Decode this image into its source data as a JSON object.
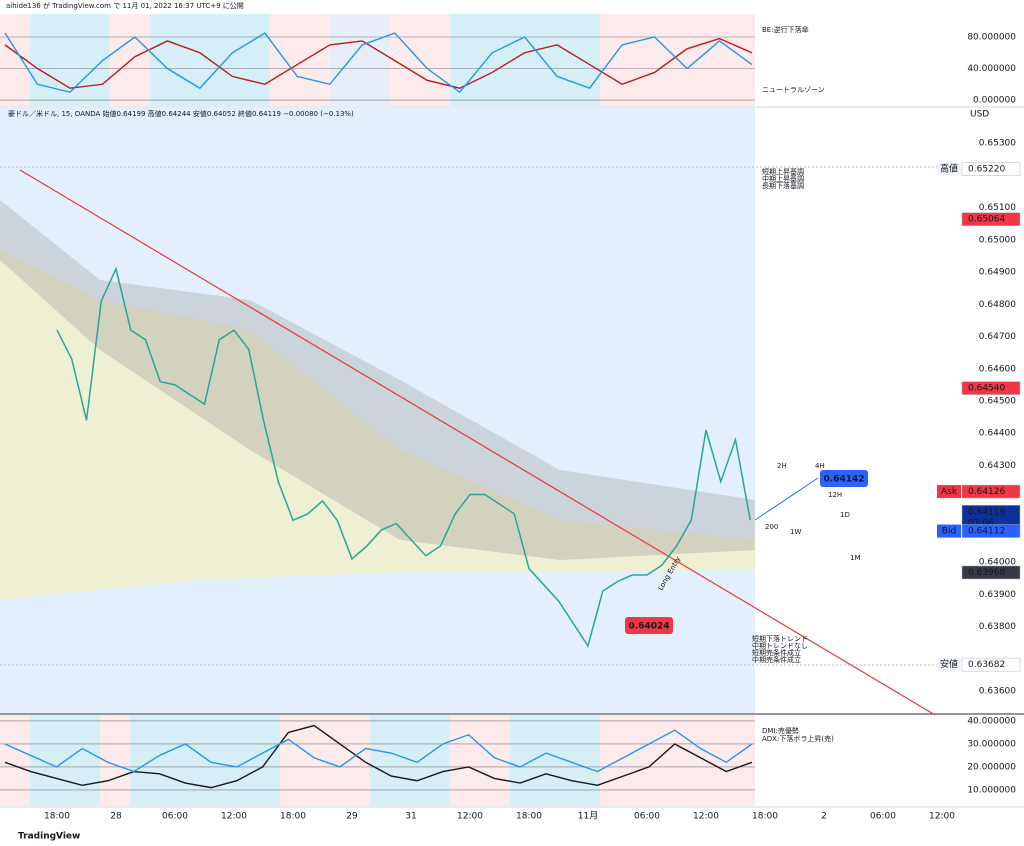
{
  "header": {
    "author_line": "aihide136 が TradingView.com で 11月 01, 2022 16:37 UTC+9 に公開",
    "symbol_line": "豪ドル／米ドル, 15, OANDA  始値0.64199  高値0.64244  安値0.64052  終値0.64119  −0.00080 (−0.13%)",
    "currency": "USD"
  },
  "chart_data": [
    {
      "type": "line",
      "yticks": [
        {
          "value": 80,
          "label": "80.000000"
        },
        {
          "value": 40,
          "label": "40.000000"
        },
        {
          "value": 0,
          "label": "0.000000"
        }
      ],
      "ylim": [
        -7.6,
        109.2
      ],
      "grid": true,
      "notes": [
        "BE:逆行下落傘",
        "ニュートラルゾーン"
      ],
      "series": [
        {
          "color": "#b71c1c",
          "values": [
            70,
            40,
            15,
            20,
            55,
            75,
            60,
            30,
            20,
            45,
            70,
            75,
            50,
            25,
            15,
            35,
            60,
            70,
            45,
            20,
            35,
            65,
            78,
            60
          ]
        },
        {
          "color": "#2196f3",
          "values": [
            85,
            20,
            10,
            50,
            80,
            40,
            15,
            60,
            85,
            30,
            20,
            70,
            85,
            40,
            10,
            60,
            80,
            30,
            15,
            70,
            80,
            40,
            75,
            45
          ]
        }
      ]
    },
    {
      "type": "line",
      "categories": [
        "18:00",
        null,
        null,
        null,
        "28",
        null,
        null,
        null,
        "06:00",
        null,
        null,
        null,
        "12:00",
        null,
        null,
        null,
        "18:00",
        null,
        null,
        null,
        "29",
        null,
        null,
        null,
        "31",
        null,
        null,
        null,
        "12:00",
        null,
        null,
        null,
        "18:00",
        null,
        null,
        null,
        "11月",
        null,
        null,
        null,
        "06:00",
        null,
        null,
        null,
        "12:00",
        null,
        null,
        null,
        "18:00",
        null,
        null,
        null,
        "2",
        null,
        null,
        null,
        "06:00",
        null,
        null,
        null,
        "12:00",
        null,
        null,
        null
      ],
      "values": [
        0.6472,
        0.6463,
        0.6444,
        0.6481,
        0.6491,
        0.6472,
        0.6469,
        0.6456,
        0.6455,
        0.6452,
        0.6449,
        0.6469,
        0.6472,
        0.6466,
        0.6444,
        0.6425,
        0.6413,
        0.6415,
        0.6419,
        0.6413,
        0.6401,
        0.6405,
        0.641,
        0.6412,
        0.6407,
        0.6402,
        0.6405,
        0.6415,
        0.6421,
        0.6421,
        0.6418,
        0.6415,
        0.6398,
        0.6393,
        0.6388,
        0.6381,
        0.6374,
        0.6391,
        0.6394,
        0.6396,
        0.6396,
        0.6399,
        0.6405,
        0.6413,
        0.6441,
        0.6425,
        0.6438,
        0.6413,
        null,
        null,
        null,
        null,
        null,
        null,
        null,
        null,
        null,
        null,
        null,
        null,
        null,
        null,
        null,
        null
      ],
      "color": "#26a69a",
      "ylim": [
        0.63532,
        0.65409
      ],
      "yticks": [
        {
          "value": 0.653,
          "label": "0.65300"
        },
        {
          "value": 0.651,
          "label": "0.65100"
        },
        {
          "value": 0.65,
          "label": "0.65000"
        },
        {
          "value": 0.649,
          "label": "0.64900"
        },
        {
          "value": 0.648,
          "label": "0.64800"
        },
        {
          "value": 0.647,
          "label": "0.64700"
        },
        {
          "value": 0.646,
          "label": "0.64600"
        },
        {
          "value": 0.645,
          "label": "0.64500"
        },
        {
          "value": 0.644,
          "label": "0.64400"
        },
        {
          "value": 0.643,
          "label": "0.64300"
        },
        {
          "value": 0.64,
          "label": "0.64000"
        },
        {
          "value": 0.639,
          "label": "0.63900"
        },
        {
          "value": 0.638,
          "label": "0.63800"
        },
        {
          "value": 0.636,
          "label": "0.63600"
        }
      ],
      "price_tags": [
        {
          "prefix": "高値",
          "value": 0.6522,
          "label": "0.65220",
          "color": "#ffffff",
          "text_color": "#131722"
        },
        {
          "value": 0.65064,
          "label": "0.65064",
          "color": "#f23645",
          "text_color": "#ffffff"
        },
        {
          "value": 0.6454,
          "label": "0.64540",
          "color": "#f23645",
          "text_color": "#ffffff"
        },
        {
          "prefix": "Ask",
          "value": 0.64126,
          "label": "0.64126",
          "color": "#f23645",
          "text_color": "#ffffff"
        },
        {
          "value": 0.64119,
          "label": "0.64119",
          "sub": "07:06",
          "color": "#0c3299",
          "text_color": "#ffffff"
        },
        {
          "prefix": "Bid",
          "value": 0.64112,
          "label": "0.64112",
          "color": "#2962ff",
          "text_color": "#ffffff"
        },
        {
          "value": 0.63968,
          "label": "0.63968",
          "color": "#363a45",
          "text_color": "#ffffff"
        },
        {
          "prefix": "安値",
          "value": 0.63682,
          "label": "0.63682",
          "color": "#ffffff",
          "text_color": "#131722"
        }
      ],
      "callouts": [
        {
          "text": "0.64142",
          "color": "#2962ff"
        },
        {
          "text": "0.64024",
          "color": "#f23645"
        }
      ],
      "ma_labels": [
        "2H",
        "4H",
        "12H",
        "1D",
        "200",
        "1W",
        "1M"
      ],
      "annotation": "Long Entry",
      "notes_top": [
        "短期上昇基調",
        "中期上昇基調",
        "長期下落基調"
      ],
      "notes_bottom": [
        "短期下落トレンド",
        "中期トレンドなし",
        "短期売条件成立",
        "中期売条件成立"
      ]
    },
    {
      "type": "line",
      "yticks": [
        {
          "value": 40,
          "label": "40.000000"
        },
        {
          "value": 30,
          "label": "30.000000"
        },
        {
          "value": 20,
          "label": "20.000000"
        },
        {
          "value": 10,
          "label": "10.000000"
        }
      ],
      "ylim": [
        3,
        42.6
      ],
      "grid": true,
      "notes": [
        "DMI:売優勢",
        "ADX:下落ボラ上昇(売)"
      ],
      "series": [
        {
          "color": "#131722",
          "values": [
            22,
            18,
            15,
            12,
            14,
            18,
            17,
            13,
            11,
            14,
            20,
            35,
            38,
            30,
            22,
            16,
            14,
            18,
            20,
            15,
            13,
            17,
            14,
            12,
            16,
            20,
            30,
            24,
            18,
            22
          ]
        },
        {
          "color": "#2196f3",
          "values": [
            30,
            25,
            20,
            28,
            22,
            18,
            25,
            30,
            22,
            20,
            26,
            32,
            24,
            20,
            28,
            26,
            22,
            30,
            34,
            24,
            20,
            26,
            22,
            18,
            24,
            30,
            36,
            28,
            22,
            30
          ]
        }
      ]
    }
  ],
  "footer": {
    "brand": "TradingView"
  }
}
